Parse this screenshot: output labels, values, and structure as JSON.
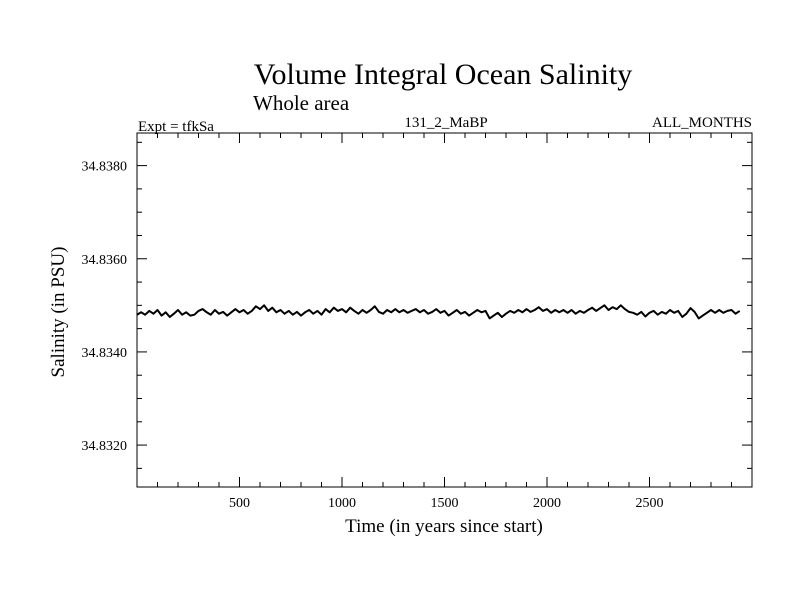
{
  "chart_data": {
    "type": "line",
    "title": "Volume Integral Ocean Salinity",
    "subtitle": "Whole area",
    "experiment_label": "Expt = tfkSa",
    "run_label": "131_2_MaBP",
    "months_label": "ALL_MONTHS",
    "xlabel": "Time (in years since start)",
    "ylabel": "Salinity (in PSU)",
    "xlim": [
      0,
      3000
    ],
    "ylim": [
      34.8311,
      34.8387
    ],
    "x_ticks": [
      500,
      1000,
      1500,
      2000,
      2500
    ],
    "x_tick_labels": [
      "500",
      "1000",
      "1500",
      "2000",
      "2500"
    ],
    "y_ticks": [
      34.832,
      34.834,
      34.836,
      34.838
    ],
    "y_tick_labels": [
      "34.8320",
      "34.8340",
      "34.8360",
      "34.8380"
    ],
    "series": [
      {
        "name": "salinity",
        "x_start": 0,
        "x_step": 20,
        "values": [
          34.8348,
          34.83485,
          34.8348,
          34.83488,
          34.83482,
          34.8349,
          34.83478,
          34.83485,
          34.83475,
          34.83482,
          34.8349,
          34.8348,
          34.83485,
          34.83478,
          34.8348,
          34.83488,
          34.83492,
          34.83485,
          34.8348,
          34.8349,
          34.83482,
          34.83486,
          34.83478,
          34.83485,
          34.83492,
          34.83485,
          34.8349,
          34.83482,
          34.83488,
          34.83498,
          34.83492,
          34.835,
          34.83488,
          34.83495,
          34.83485,
          34.8349,
          34.83482,
          34.83488,
          34.8348,
          34.83486,
          34.83478,
          34.83485,
          34.8349,
          34.83482,
          34.83488,
          34.8348,
          34.83492,
          34.83485,
          34.83495,
          34.83488,
          34.83492,
          34.83485,
          34.83495,
          34.83488,
          34.83482,
          34.8349,
          34.83484,
          34.8349,
          34.83498,
          34.83486,
          34.83482,
          34.8349,
          34.83485,
          34.83492,
          34.83485,
          34.8349,
          34.83484,
          34.83488,
          34.83492,
          34.83485,
          34.8349,
          34.83482,
          34.83486,
          34.83492,
          34.83484,
          34.83488,
          34.83478,
          34.83484,
          34.8349,
          34.83482,
          34.83486,
          34.83478,
          34.83484,
          34.8349,
          34.83485,
          34.83488,
          34.83472,
          34.83478,
          34.83484,
          34.83475,
          34.83482,
          34.83488,
          34.83484,
          34.8349,
          34.83485,
          34.83492,
          34.83486,
          34.8349,
          34.83496,
          34.83488,
          34.83492,
          34.83484,
          34.8349,
          34.83485,
          34.8349,
          34.83484,
          34.8349,
          34.83482,
          34.83488,
          34.83484,
          34.8349,
          34.83495,
          34.83488,
          34.83494,
          34.835,
          34.8349,
          34.83496,
          34.83492,
          34.835,
          34.83492,
          34.83486,
          34.83484,
          34.8348,
          34.83486,
          34.83476,
          34.83484,
          34.83488,
          34.8348,
          34.83486,
          34.83482,
          34.8349,
          34.83484,
          34.83488,
          34.83475,
          34.83482,
          34.83494,
          34.83486,
          34.83472,
          34.83478,
          34.83484,
          34.8349,
          34.83484,
          34.8349,
          34.83484,
          34.83488,
          34.8349,
          34.83482,
          34.83488
        ]
      }
    ]
  }
}
